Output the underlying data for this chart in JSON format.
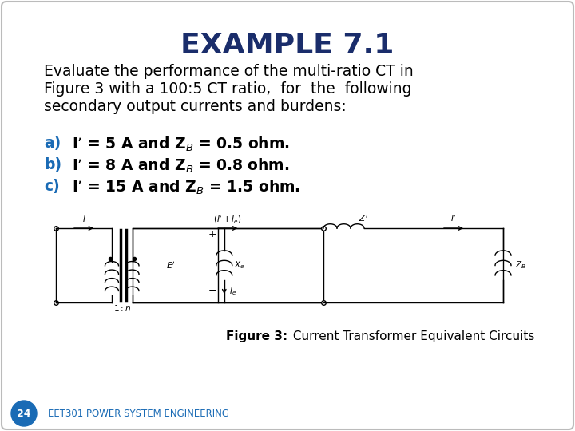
{
  "title": "EXAMPLE 7.1",
  "title_color": "#1a2d6b",
  "title_fontsize": 26,
  "title_fontweight": "bold",
  "body_text": "Evaluate the performance of the multi-ratio CT in\nFigure 3 with a 100:5 CT ratio,  for  the  following\nsecondary output currents and burdens:",
  "items": [
    {
      "label": "a)",
      "text": "I’ = 5 A and Z$_B$ = 0.5 ohm."
    },
    {
      "label": "b)",
      "text": "I’ = 8 A and Z$_B$ = 0.8 ohm."
    },
    {
      "label": "c)",
      "text": "I’ = 15 A and Z$_B$ = 1.5 ohm."
    }
  ],
  "item_label_color": "#1a6bb5",
  "item_text_color": "#000000",
  "figure_caption_bold": "Figure 3:",
  "figure_caption_rest": " Current Transformer Equivalent Circuits",
  "page_number": "24",
  "footer_text": "EET301 POWER SYSTEM ENGINEERING",
  "footer_color": "#1a6bb5",
  "bg_color": "#ffffff",
  "border_color": "#bbbbbb",
  "body_fontsize": 13.5,
  "item_fontsize": 13.5,
  "caption_fontsize": 11
}
